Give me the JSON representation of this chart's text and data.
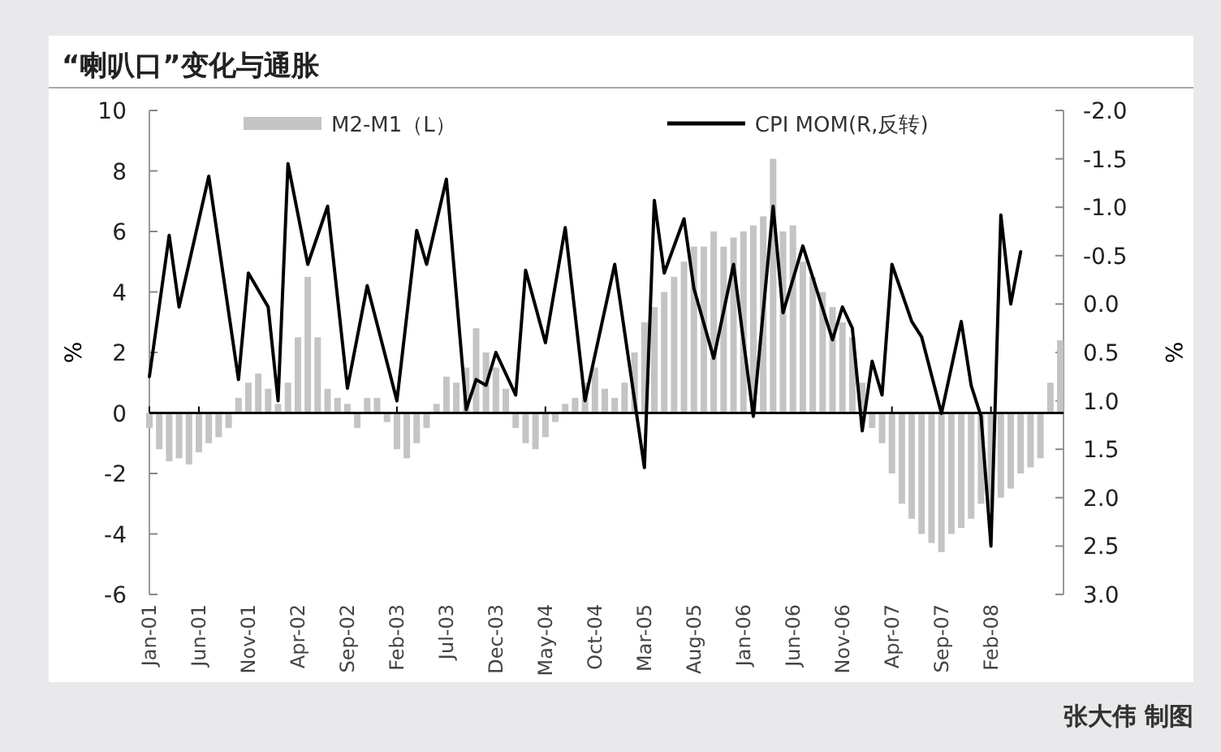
{
  "chart_data": {
    "type": "bar",
    "title": "“喇叭口”变化与通胀",
    "ylabel": "%",
    "y2label": "%",
    "annotations": [
      "张大伟 制图"
    ],
    "legend": "top",
    "x": [
      "2001-01",
      "2001-02",
      "2001-03",
      "2001-04",
      "2001-05",
      "2001-06",
      "2001-07",
      "2001-08",
      "2001-09",
      "2001-10",
      "2001-11",
      "2001-12",
      "2002-01",
      "2002-02",
      "2002-03",
      "2002-04",
      "2002-05",
      "2002-06",
      "2002-07",
      "2002-08",
      "2002-09",
      "2002-10",
      "2002-11",
      "2002-12",
      "2003-01",
      "2003-02",
      "2003-03",
      "2003-04",
      "2003-05",
      "2003-06",
      "2003-07",
      "2003-08",
      "2003-09",
      "2003-10",
      "2003-11",
      "2003-12",
      "2004-01",
      "2004-02",
      "2004-03",
      "2004-04",
      "2004-05",
      "2004-06",
      "2004-07",
      "2004-08",
      "2004-09",
      "2004-10",
      "2004-11",
      "2004-12",
      "2005-01",
      "2005-02",
      "2005-03",
      "2005-04",
      "2005-05",
      "2005-06",
      "2005-07",
      "2005-08",
      "2005-09",
      "2005-10",
      "2005-11",
      "2005-12",
      "2006-01",
      "2006-02",
      "2006-03",
      "2006-04",
      "2006-05",
      "2006-06",
      "2006-07",
      "2006-08",
      "2006-09",
      "2006-10",
      "2006-11",
      "2006-12",
      "2007-01",
      "2007-02",
      "2007-03",
      "2007-04",
      "2007-05",
      "2007-06",
      "2007-07",
      "2007-08",
      "2007-09",
      "2007-10",
      "2007-11",
      "2007-12",
      "2008-01",
      "2008-02",
      "2008-03",
      "2008-04",
      "2008-05",
      "2008-06",
      "2008-07",
      "2008-08",
      "2008-09"
    ],
    "series": [
      {
        "name": "M2-M1（L）",
        "color": "#c4c4c4",
        "values": [
          -0.5,
          -1.2,
          -1.6,
          -1.5,
          -1.7,
          -1.3,
          -1.0,
          -0.8,
          -0.5,
          0.5,
          1.0,
          1.3,
          0.8,
          0.3,
          1.0,
          2.5,
          4.5,
          2.5,
          0.8,
          0.5,
          0.3,
          -0.5,
          0.5,
          0.5,
          -0.3,
          -1.2,
          -1.5,
          -1.0,
          -0.5,
          0.3,
          1.2,
          1.0,
          1.5,
          2.8,
          2.0,
          1.5,
          0.8,
          -0.5,
          -1.0,
          -1.2,
          -0.8,
          -0.3,
          0.3,
          0.5,
          1.0,
          1.5,
          0.8,
          0.5,
          1.0,
          2.0,
          3.0,
          3.5,
          4.0,
          4.5,
          5.0,
          5.5,
          5.5,
          6.0,
          5.5,
          5.8,
          6.0,
          6.2,
          6.5,
          8.4,
          6.0,
          6.2,
          5.0,
          4.5,
          4.0,
          3.5,
          3.0,
          2.5,
          1.0,
          -0.5,
          -1.0,
          -2.0,
          -3.0,
          -3.5,
          -4.0,
          -4.3,
          -4.6,
          -4.0,
          -3.8,
          -3.5,
          -3.0,
          -3.2,
          -2.8,
          -2.5,
          -2.0,
          -1.8,
          -1.5,
          1.0,
          2.4
        ]
      },
      {
        "name": "CPI MOM(R,反转)",
        "color": "#000000",
        "type": "line",
        "axis": "y2",
        "x": [
          "2001-01",
          "2001-03",
          "2001-04",
          "2001-07",
          "2001-10",
          "2001-11",
          "2002-01",
          "2002-02",
          "2002-03",
          "2002-05",
          "2002-07",
          "2002-09",
          "2002-11",
          "2003-02",
          "2003-04",
          "2003-05",
          "2003-07",
          "2003-09",
          "2003-10",
          "2003-11",
          "2003-12",
          "2004-02",
          "2004-03",
          "2004-05",
          "2004-07",
          "2004-09",
          "2004-12",
          "2005-03",
          "2005-04",
          "2005-05",
          "2005-07",
          "2005-08",
          "2005-10",
          "2005-12",
          "2006-02",
          "2006-04",
          "2006-05",
          "2006-07",
          "2006-10",
          "2006-11",
          "2006-12",
          "2007-01",
          "2007-02",
          "2007-03",
          "2007-04",
          "2007-06",
          "2007-07",
          "2007-09",
          "2007-11",
          "2007-12",
          "2008-01",
          "2008-02",
          "2008-03",
          "2008-04",
          "2008-05"
        ],
        "values": [
          0.75,
          -0.71,
          0.03,
          -1.32,
          0.78,
          -0.32,
          0.03,
          1.0,
          -1.45,
          -0.41,
          -1.01,
          0.87,
          -0.19,
          1.0,
          -0.76,
          -0.41,
          -1.29,
          1.09,
          0.78,
          0.84,
          0.5,
          0.94,
          -0.35,
          0.4,
          -0.79,
          1.0,
          -0.41,
          1.69,
          -1.07,
          -0.32,
          -0.88,
          -0.16,
          0.56,
          -0.41,
          1.16,
          -1.01,
          0.09,
          -0.6,
          0.37,
          0.03,
          0.25,
          1.31,
          0.59,
          0.94,
          -0.41,
          0.18,
          0.34,
          1.13,
          0.18,
          0.84,
          1.16,
          2.5,
          -0.92,
          0.0,
          -0.54
        ]
      }
    ],
    "xlim": [
      "2001-01",
      "2008-09"
    ],
    "xticks": [
      {
        "value": "2001-01",
        "label": "Jan-01"
      },
      {
        "value": "2001-06",
        "label": "Jun-01"
      },
      {
        "value": "2001-11",
        "label": "Nov-01"
      },
      {
        "value": "2002-04",
        "label": "Apr-02"
      },
      {
        "value": "2002-09",
        "label": "Sep-02"
      },
      {
        "value": "2003-02",
        "label": "Feb-03"
      },
      {
        "value": "2003-07",
        "label": "Jul-03"
      },
      {
        "value": "2003-12",
        "label": "Dec-03"
      },
      {
        "value": "2004-05",
        "label": "May-04"
      },
      {
        "value": "2004-10",
        "label": "Oct-04"
      },
      {
        "value": "2005-03",
        "label": "Mar-05"
      },
      {
        "value": "2005-08",
        "label": "Aug-05"
      },
      {
        "value": "2006-01",
        "label": "Jan-06"
      },
      {
        "value": "2006-06",
        "label": "Jun-06"
      },
      {
        "value": "2006-11",
        "label": "Nov-06"
      },
      {
        "value": "2007-04",
        "label": "Apr-07"
      },
      {
        "value": "2007-09",
        "label": "Sep-07"
      },
      {
        "value": "2008-02",
        "label": "Feb-08"
      }
    ],
    "ylim": [
      -6,
      10
    ],
    "yticks": [
      -6,
      -4,
      -2,
      0,
      2,
      4,
      6,
      8,
      10
    ],
    "y2lim": [
      3.0,
      -2.0
    ],
    "y2ticks": [
      {
        "value": 3,
        "label": "3.0"
      },
      {
        "value": 2.5,
        "label": "2.5"
      },
      {
        "value": 2,
        "label": "2.0"
      },
      {
        "value": 1.5,
        "label": "1.5"
      },
      {
        "value": 1,
        "label": "1.0"
      },
      {
        "value": 0.5,
        "label": "0.5"
      },
      {
        "value": 0,
        "label": "0.0"
      },
      {
        "value": -0.5,
        "label": "-0.5"
      },
      {
        "value": -1,
        "label": "-1.0"
      },
      {
        "value": -1.5,
        "label": "-1.5"
      },
      {
        "value": -2,
        "label": "-2.0"
      }
    ]
  }
}
